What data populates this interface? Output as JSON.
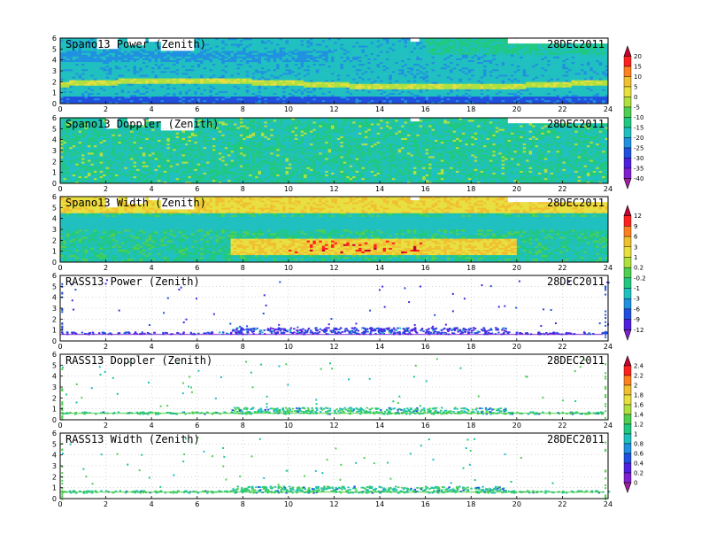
{
  "chart_data": [
    {
      "type": "heatmap",
      "title": "Spano13 Power (Zenith)",
      "date": "28DEC2011",
      "xlim": [
        0,
        24
      ],
      "ylim": [
        0,
        6
      ],
      "x_ticks": [
        "0",
        "2",
        "4",
        "6",
        "8",
        "10",
        "12",
        "14",
        "16",
        "18",
        "20",
        "22",
        "24"
      ],
      "y_ticks": [
        "0",
        "1",
        "2",
        "3",
        "4",
        "5",
        "6"
      ],
      "colorbar_ticks": [
        "20",
        "15",
        "10",
        "5",
        "0",
        "-5",
        "-10",
        "-15",
        "-20",
        "-25",
        "-30",
        "-35",
        "-40"
      ],
      "colorbar_colors": [
        "#c80030",
        "#ff2020",
        "#ff8020",
        "#f0c030",
        "#e8e040",
        "#b0e040",
        "#50d050",
        "#20c880",
        "#20c0c0",
        "#2090e0",
        "#2050e0",
        "#5020e0",
        "#8020d0",
        "#a020a0"
      ],
      "layers": [
        {
          "name": "background",
          "value": -18
        },
        {
          "name": "low-layer",
          "height_km": 0.55,
          "value": -32
        },
        {
          "name": "bright-band",
          "height_km": 1.8,
          "value": -4
        },
        {
          "name": "upper-band",
          "height_km": 4.3,
          "value": -22
        }
      ],
      "gaps": [
        [
          1.6,
          2.6,
          5.0,
          6.0
        ],
        [
          2.9,
          3.7,
          5.4,
          6.0
        ],
        [
          3.9,
          4.4,
          5.7,
          6.0
        ],
        [
          4.4,
          5.9,
          4.8,
          6.0
        ],
        [
          15.3,
          15.8,
          5.6,
          6.0
        ],
        [
          19.6,
          24,
          5.5,
          6.0
        ]
      ]
    },
    {
      "type": "heatmap",
      "title": "Spano13 Doppler (Zenith)",
      "date": "28DEC2011",
      "xlim": [
        0,
        24
      ],
      "ylim": [
        0,
        6
      ],
      "x_ticks": [
        "0",
        "2",
        "4",
        "6",
        "8",
        "10",
        "12",
        "14",
        "16",
        "18",
        "20",
        "22",
        "24"
      ],
      "y_ticks": [
        "0",
        "1",
        "2",
        "3",
        "4",
        "5",
        "6"
      ],
      "layers": [
        {
          "name": "background",
          "value": -15
        }
      ],
      "gaps": [
        [
          2.0,
          2.6,
          5.0,
          6.0
        ],
        [
          2.9,
          3.7,
          5.4,
          6.0
        ],
        [
          3.9,
          4.4,
          5.7,
          6.0
        ],
        [
          4.4,
          5.9,
          4.8,
          6.0
        ],
        [
          15.3,
          15.8,
          5.6,
          6.0
        ],
        [
          19.6,
          24,
          5.5,
          6.0
        ]
      ]
    },
    {
      "type": "heatmap",
      "title": "Spano13 Width (Zenith)",
      "date": "28DEC2011",
      "xlim": [
        0,
        24
      ],
      "ylim": [
        0,
        6
      ],
      "x_ticks": [
        "0",
        "2",
        "4",
        "6",
        "8",
        "10",
        "12",
        "14",
        "16",
        "18",
        "20",
        "22",
        "24"
      ],
      "y_ticks": [
        "0",
        "1",
        "2",
        "3",
        "4",
        "5",
        "6"
      ],
      "colorbar_ticks": [
        "12",
        "9",
        "6",
        "3",
        "1",
        "0.2",
        "-0.2",
        "-1",
        "-3",
        "-6",
        "-9",
        "-12"
      ],
      "colorbar_colors": [
        "#c80030",
        "#ff2020",
        "#ff8020",
        "#f0c030",
        "#e8e040",
        "#b0e040",
        "#50d050",
        "#20c880",
        "#20c0c0",
        "#2090e0",
        "#2050e0",
        "#5020e0",
        "#8020d0"
      ],
      "layers": [
        {
          "name": "background",
          "value": -1
        },
        {
          "name": "turbulent-layer",
          "height_km": 1.3,
          "value": 3
        }
      ],
      "gaps": [
        [
          2.0,
          2.6,
          5.0,
          6.0
        ],
        [
          2.9,
          3.7,
          5.4,
          6.0
        ],
        [
          3.9,
          4.4,
          5.7,
          6.0
        ],
        [
          4.4,
          5.9,
          4.8,
          6.0
        ],
        [
          15.3,
          15.8,
          5.6,
          6.0
        ],
        [
          19.6,
          24,
          5.5,
          6.0
        ]
      ]
    },
    {
      "type": "scatter",
      "title": "RASS13 Power (Zenith)",
      "date": "28DEC2011",
      "xlim": [
        0,
        24
      ],
      "ylim": [
        0,
        6
      ],
      "x_ticks": [
        "0",
        "2",
        "4",
        "6",
        "8",
        "10",
        "12",
        "14",
        "16",
        "18",
        "20",
        "22",
        "24"
      ],
      "y_ticks": [
        "0",
        "1",
        "2",
        "3",
        "4",
        "5",
        "6"
      ],
      "main_band_km": [
        0.6,
        1.1
      ],
      "band_dense_hours": [
        7.5,
        19.5
      ],
      "value_range": [
        -12,
        -6
      ]
    },
    {
      "type": "scatter",
      "title": "RASS13 Doppler (Zenith)",
      "date": "28DEC2011",
      "xlim": [
        0,
        24
      ],
      "ylim": [
        0,
        6
      ],
      "x_ticks": [
        "0",
        "2",
        "4",
        "6",
        "8",
        "10",
        "12",
        "14",
        "16",
        "18",
        "20",
        "22",
        "24"
      ],
      "y_ticks": [
        "0",
        "1",
        "2",
        "3",
        "4",
        "5",
        "6"
      ],
      "colorbar_ticks": [
        "2.4",
        "2.2",
        "2",
        "1.8",
        "1.6",
        "1.4",
        "1.2",
        "1",
        "0.8",
        "0.6",
        "0.4",
        "0.2",
        "0"
      ],
      "colorbar_colors": [
        "#c80030",
        "#ff2020",
        "#ff8020",
        "#f0c030",
        "#e8e040",
        "#b0e040",
        "#50d050",
        "#20c880",
        "#20c0c0",
        "#2090e0",
        "#2050e0",
        "#5020e0",
        "#8020d0",
        "#a020a0"
      ],
      "main_band_km": [
        0.5,
        1.0
      ],
      "band_dense_hours": [
        7.5,
        19.5
      ],
      "value_range": [
        0.8,
        1.4
      ]
    },
    {
      "type": "scatter",
      "title": "RASS13 Width (Zenith)",
      "date": "28DEC2011",
      "xlim": [
        0,
        24
      ],
      "ylim": [
        0,
        6
      ],
      "x_ticks": [
        "0",
        "2",
        "4",
        "6",
        "8",
        "10",
        "12",
        "14",
        "16",
        "18",
        "20",
        "22",
        "24"
      ],
      "y_ticks": [
        "0",
        "1",
        "2",
        "3",
        "4",
        "5",
        "6"
      ],
      "main_band_km": [
        0.5,
        1.0
      ],
      "band_dense_hours": [
        7.5,
        19.5
      ],
      "value_range": [
        0.8,
        1.4
      ]
    }
  ]
}
